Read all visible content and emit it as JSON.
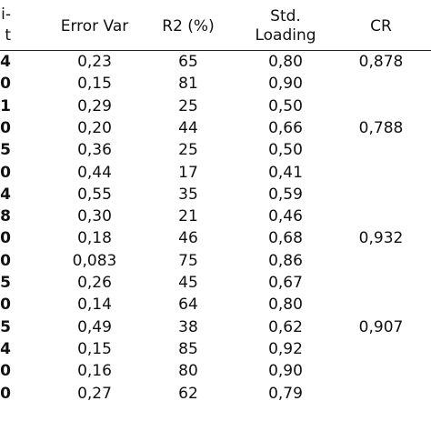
{
  "table": {
    "headers": {
      "first_col_fragment": [
        "i-",
        "t"
      ],
      "error_var": "Error Var",
      "r2": "R2 (%)",
      "std_loading": [
        "Std.",
        "Loading"
      ],
      "cr": "CR"
    },
    "first_col_fragments": [
      "4",
      "0",
      "1",
      "0",
      "5",
      "0",
      "4",
      "8",
      "0",
      "0",
      "5",
      "0",
      "5",
      "4",
      "0",
      "0"
    ],
    "rows": [
      {
        "error_var": "0,23",
        "r2": "65",
        "std_loading": "0,80",
        "cr": "0,878"
      },
      {
        "error_var": "0,15",
        "r2": "81",
        "std_loading": "0,90",
        "cr": ""
      },
      {
        "error_var": "0,29",
        "r2": "25",
        "std_loading": "0,50",
        "cr": ""
      },
      {
        "error_var": "0,20",
        "r2": "44",
        "std_loading": "0,66",
        "cr": "0,788"
      },
      {
        "error_var": "0,36",
        "r2": "25",
        "std_loading": "0,50",
        "cr": ""
      },
      {
        "error_var": "0,44",
        "r2": "17",
        "std_loading": "0,41",
        "cr": ""
      },
      {
        "error_var": "0,55",
        "r2": "35",
        "std_loading": "0,59",
        "cr": ""
      },
      {
        "error_var": "0,30",
        "r2": "21",
        "std_loading": "0,46",
        "cr": ""
      },
      {
        "error_var": "0,18",
        "r2": "46",
        "std_loading": "0,68",
        "cr": "0,932"
      },
      {
        "error_var": "0,083",
        "r2": "75",
        "std_loading": "0,86",
        "cr": ""
      },
      {
        "error_var": "0,26",
        "r2": "45",
        "std_loading": "0,67",
        "cr": ""
      },
      {
        "error_var": "0,14",
        "r2": "64",
        "std_loading": "0,80",
        "cr": ""
      },
      {
        "error_var": "0,49",
        "r2": "38",
        "std_loading": "0,62",
        "cr": "0,907"
      },
      {
        "error_var": "0,15",
        "r2": "85",
        "std_loading": "0,92",
        "cr": ""
      },
      {
        "error_var": "0,16",
        "r2": "80",
        "std_loading": "0,90",
        "cr": ""
      },
      {
        "error_var": "0,27",
        "r2": "62",
        "std_loading": "0,79",
        "cr": ""
      }
    ]
  },
  "colors": {
    "text": "#111111",
    "rule": "#222222",
    "background": "#ffffff"
  }
}
